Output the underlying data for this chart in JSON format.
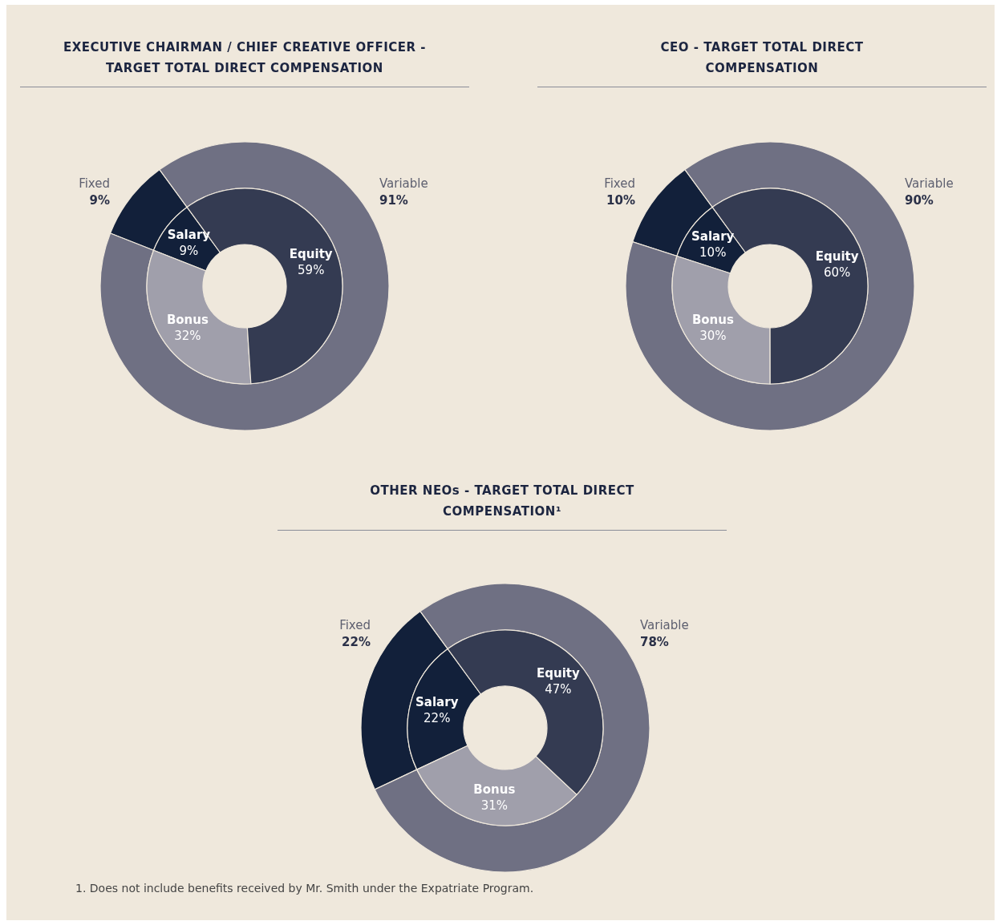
{
  "chart_data": [
    {
      "type": "donut",
      "title": "EXECUTIVE CHAIRMAN / CHIEF CREATIVE OFFICER - TARGET TOTAL DIRECT COMPENSATION",
      "categories": [
        "Fixed",
        "Variable"
      ],
      "values": [
        9,
        91
      ],
      "value_labels": [
        "9%",
        "91%"
      ],
      "colors": [
        "#12203a",
        "#6f7083"
      ]
    },
    {
      "type": "donut",
      "categories": [
        "Salary",
        "Bonus",
        "Equity"
      ],
      "values": [
        9,
        32,
        59
      ],
      "value_labels": [
        "9%",
        "32%",
        "59%"
      ],
      "colors": [
        "#12203a",
        "#a09fab",
        "#343b52"
      ]
    },
    {
      "type": "donut",
      "title": "CEO - TARGET TOTAL DIRECT COMPENSATION",
      "categories": [
        "Fixed",
        "Variable"
      ],
      "values": [
        10,
        90
      ],
      "value_labels": [
        "10%",
        "90%"
      ],
      "colors": [
        "#12203a",
        "#6f7083"
      ]
    },
    {
      "type": "donut",
      "categories": [
        "Salary",
        "Bonus",
        "Equity"
      ],
      "values": [
        10,
        30,
        60
      ],
      "value_labels": [
        "10%",
        "30%",
        "60%"
      ],
      "colors": [
        "#12203a",
        "#a09fab",
        "#343b52"
      ]
    },
    {
      "type": "donut",
      "title": "OTHER NEOs - TARGET TOTAL DIRECT COMPENSATION¹",
      "categories": [
        "Fixed",
        "Variable"
      ],
      "values": [
        22,
        78
      ],
      "value_labels": [
        "22%",
        "78%"
      ],
      "colors": [
        "#12203a",
        "#6f7083"
      ],
      "annotations": [
        "1. Does not include benefits received by Mr. Smith under the Expatriate Program."
      ]
    },
    {
      "type": "donut",
      "categories": [
        "Salary",
        "Bonus",
        "Equity"
      ],
      "values": [
        22,
        31,
        47
      ],
      "value_labels": [
        "22%",
        "31%",
        "47%"
      ],
      "colors": [
        "#12203a",
        "#a09fab",
        "#343b52"
      ]
    }
  ]
}
